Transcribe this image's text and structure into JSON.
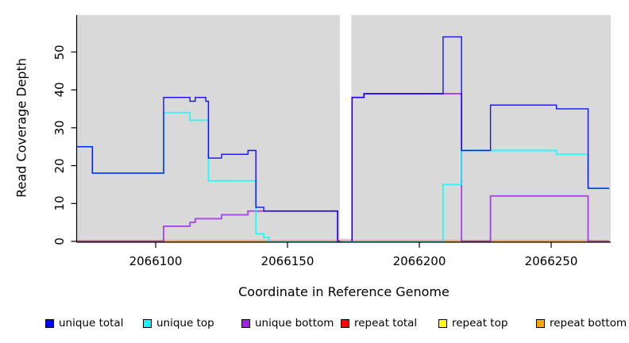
{
  "figure": {
    "xlabel": "Coordinate in Reference Genome",
    "ylabel": "Read Coverage Depth"
  },
  "chart_data": {
    "type": "line",
    "style": "step",
    "title": "",
    "xlabel": "Coordinate in Reference Genome",
    "ylabel": "Read Coverage Depth",
    "xlim": [
      2066070,
      2066272
    ],
    "ylim": [
      0,
      59
    ],
    "x_ticks": [
      2066100,
      2066150,
      2066200,
      2066250
    ],
    "y_ticks": [
      0,
      10,
      20,
      30,
      40,
      50
    ],
    "grid": "off",
    "panel_bg": "#d9d9d9",
    "gap_region": {
      "x_start": 2066170,
      "x_end": 2066174.5,
      "note": "white no-data band"
    },
    "legend_position": "bottom-horizontal",
    "series": [
      {
        "name": "unique total",
        "color": "#0000ff",
        "segments": [
          [
            [
              2066070,
              25
            ],
            [
              2066076,
              18
            ],
            [
              2066103,
              38
            ],
            [
              2066113,
              37
            ],
            [
              2066115,
              38
            ],
            [
              2066119,
              37
            ],
            [
              2066120,
              22
            ],
            [
              2066125,
              23
            ],
            [
              2066135,
              24
            ],
            [
              2066138,
              9
            ],
            [
              2066141,
              8
            ],
            [
              2066169,
              0
            ],
            [
              2066170,
              0
            ]
          ],
          [
            [
              2066174.5,
              0
            ],
            [
              2066174.5,
              38
            ],
            [
              2066179,
              39
            ],
            [
              2066209,
              54
            ],
            [
              2066216,
              24
            ],
            [
              2066227,
              36
            ],
            [
              2066252,
              35
            ],
            [
              2066264,
              14
            ],
            [
              2066272,
              14
            ]
          ]
        ]
      },
      {
        "name": "unique top",
        "color": "#00ffff",
        "segments": [
          [
            [
              2066070,
              25
            ],
            [
              2066076,
              18
            ],
            [
              2066103,
              34
            ],
            [
              2066113,
              32
            ],
            [
              2066120,
              16
            ],
            [
              2066138,
              2
            ],
            [
              2066141,
              1
            ],
            [
              2066143,
              0
            ],
            [
              2066209,
              15
            ],
            [
              2066216,
              24
            ],
            [
              2066252,
              23
            ],
            [
              2066264,
              14
            ],
            [
              2066272,
              14
            ]
          ]
        ]
      },
      {
        "name": "unique bottom",
        "color": "#a020f0",
        "segments": [
          [
            [
              2066070,
              0
            ],
            [
              2066103,
              4
            ],
            [
              2066113,
              5
            ],
            [
              2066115,
              6
            ],
            [
              2066125,
              7
            ],
            [
              2066135,
              8
            ],
            [
              2066169,
              0
            ],
            [
              2066170,
              0
            ]
          ],
          [
            [
              2066174.5,
              0
            ],
            [
              2066174.5,
              38
            ],
            [
              2066179,
              39
            ],
            [
              2066216,
              0
            ],
            [
              2066227,
              12
            ],
            [
              2066264,
              0
            ],
            [
              2066272,
              0
            ]
          ]
        ]
      },
      {
        "name": "repeat total",
        "color": "#ff0000",
        "segments": [
          [
            [
              2066070,
              0
            ],
            [
              2066272,
              0
            ]
          ]
        ]
      },
      {
        "name": "repeat top",
        "color": "#ffff00",
        "segments": [
          [
            [
              2066070,
              0
            ],
            [
              2066272,
              0
            ]
          ]
        ]
      },
      {
        "name": "repeat bottom",
        "color": "#ffa500",
        "segments": [
          [
            [
              2066070,
              0
            ],
            [
              2066264,
              0
            ]
          ]
        ]
      }
    ]
  }
}
